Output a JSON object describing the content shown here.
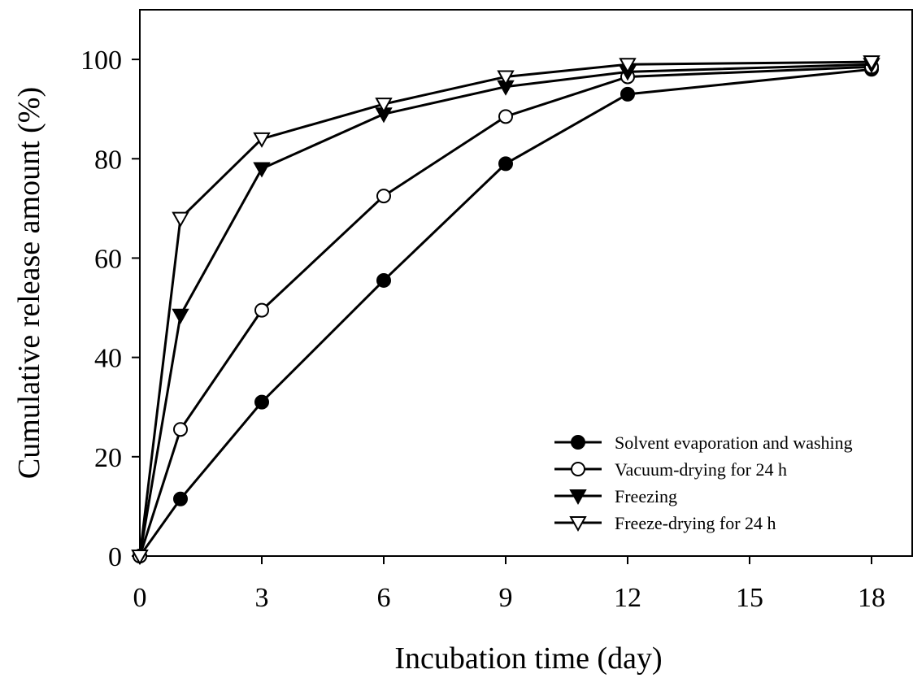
{
  "chart_data": {
    "type": "line",
    "xlabel": "Incubation time (day)",
    "ylabel": "Cumulative release amount (%)",
    "xlim": [
      0,
      19
    ],
    "ylim": [
      0,
      110
    ],
    "xticks": [
      0,
      3,
      6,
      9,
      12,
      15,
      18
    ],
    "yticks": [
      0,
      20,
      40,
      60,
      80,
      100
    ],
    "grid": false,
    "legend_position": "bottom-right",
    "series": [
      {
        "name": "Solvent evaporation and washing",
        "marker": "circle-filled",
        "x": [
          0,
          1,
          3,
          6,
          9,
          12,
          18
        ],
        "y": [
          0,
          11.5,
          31,
          55.5,
          79,
          93,
          98
        ]
      },
      {
        "name": "Vacuum-drying for 24 h",
        "marker": "circle-open",
        "x": [
          0,
          1,
          3,
          6,
          9,
          12,
          18
        ],
        "y": [
          0,
          25.5,
          49.5,
          72.5,
          88.5,
          96.5,
          98.5
        ]
      },
      {
        "name": "Freezing",
        "marker": "triangle-down-filled",
        "x": [
          0,
          1,
          3,
          6,
          9,
          12,
          18
        ],
        "y": [
          0,
          48.5,
          78,
          89,
          94.5,
          97.5,
          99
        ]
      },
      {
        "name": "Freeze-drying for 24 h",
        "marker": "triangle-down-open",
        "x": [
          0,
          1,
          3,
          6,
          9,
          12,
          18
        ],
        "y": [
          0,
          68,
          84,
          91,
          96.5,
          99,
          99.5
        ]
      }
    ]
  }
}
